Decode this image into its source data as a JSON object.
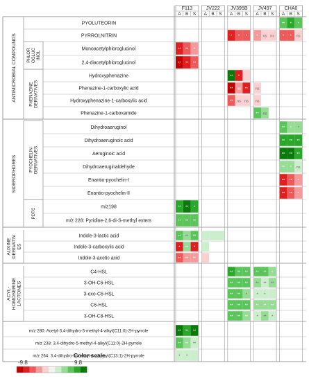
{
  "chart_data": {
    "type": "heatmap",
    "color_scale": {
      "title": "Color scale",
      "min": -9.8,
      "max": 9.8,
      "min_label": "-9.8",
      "max_label": "9.8",
      "colors": [
        "#c00000",
        "#e02020",
        "#ee5a5a",
        "#f59a9a",
        "#fbd0d0",
        "#f2f2f2",
        "#cdeecd",
        "#96db96",
        "#5bc55b",
        "#2ba82b",
        "#0b7a0b"
      ]
    },
    "strains": [
      {
        "name": "F113",
        "cols": [
          "A",
          "B",
          "S"
        ]
      },
      {
        "name": "JV222",
        "cols": [
          "A",
          "B",
          "S"
        ]
      },
      {
        "name": "JV395B",
        "cols": [
          "A",
          "B",
          "S"
        ]
      },
      {
        "name": "JV497",
        "cols": [
          "A",
          "B",
          "S"
        ]
      },
      {
        "name": "CHA0",
        "cols": [
          "A",
          "B",
          "S"
        ]
      }
    ],
    "groups": [
      {
        "label": [
          "ANTIMICROBIAL COMPOUNDS"
        ],
        "start": 0,
        "end": 7
      },
      {
        "label": [
          "SIDEROPHORES"
        ],
        "start": 8,
        "end": 15
      },
      {
        "label": [
          "AUXINE",
          "DERIVATIV",
          "ES"
        ],
        "start": 16,
        "end": 18
      },
      {
        "label": [
          "ACYL-",
          "HOMOSERINE",
          "LACTONES"
        ],
        "start": 19,
        "end": 23
      }
    ],
    "subgroups": [
      {
        "label": [
          "PHLOR",
          "OGLUC",
          "INOL"
        ],
        "start": 2,
        "end": 3
      },
      {
        "label": [
          "PHENAZINE",
          "DERIVATIVES"
        ],
        "start": 4,
        "end": 7
      },
      {
        "label": [
          "PYOCHELIN",
          "DERIVATIVES"
        ],
        "start": 8,
        "end": 13
      },
      {
        "label": [
          "PDTC"
        ],
        "start": 14,
        "end": 15
      }
    ],
    "rows": [
      {
        "label": "PYOLUTEORIN",
        "values": [
          null,
          null,
          null,
          null,
          null,
          null,
          null,
          null,
          null,
          null,
          null,
          null,
          6.5,
          7.0,
          5.0
        ],
        "sig": [
          "",
          "",
          "",
          "",
          "",
          "",
          "",
          "",
          "",
          "",
          "",
          "",
          "**",
          "*",
          "*"
        ]
      },
      {
        "label": "PYRROLNITRIN",
        "values": [
          null,
          null,
          null,
          null,
          null,
          null,
          -7.5,
          -6.0,
          -6.0,
          -4.5,
          -2.5,
          -2.5,
          -5.0,
          -5.5,
          -2.5
        ],
        "sig": [
          "",
          "",
          "",
          "",
          "",
          "",
          "*",
          "*",
          "*",
          "*",
          "ns",
          "ns",
          "*",
          "*",
          "ns"
        ]
      },
      {
        "label": "Monoacetylphloroglucinol",
        "values": [
          -7.0,
          -6.0,
          -4.0,
          null,
          null,
          null,
          null,
          null,
          null,
          null,
          null,
          null,
          null,
          null,
          null
        ],
        "sig": [
          "**",
          "**",
          "*",
          "",
          "",
          "",
          "",
          "",
          "",
          "",
          "",
          "",
          "",
          "",
          ""
        ]
      },
      {
        "label": "2,4-diacetylphloroglucinol",
        "values": [
          -9.0,
          -8.5,
          -6.5,
          null,
          null,
          null,
          null,
          null,
          null,
          null,
          null,
          null,
          null,
          null,
          null
        ],
        "sig": [
          "**",
          "**",
          "**",
          "",
          "",
          "",
          "",
          "",
          "",
          "",
          "",
          "",
          "",
          "",
          ""
        ]
      },
      {
        "label": "Hydroxyphenazine",
        "values": [
          null,
          null,
          null,
          null,
          null,
          null,
          9.5,
          -8.0,
          -1.5,
          null,
          null,
          null,
          null,
          null,
          null
        ],
        "sig": [
          "",
          "",
          "",
          "",
          "",
          "",
          "**",
          "*",
          "",
          "",
          "",
          "",
          "",
          "",
          ""
        ]
      },
      {
        "label": "Phenazine-1-carboxylic acid",
        "values": [
          null,
          null,
          null,
          null,
          null,
          null,
          -9.0,
          -4.0,
          -8.5,
          -2.0,
          null,
          null,
          null,
          null,
          null
        ],
        "sig": [
          "",
          "",
          "",
          "",
          "",
          "",
          "**",
          "ns",
          "**",
          "ns",
          "",
          "",
          "",
          "",
          ""
        ]
      },
      {
        "label": "Hydroxyphenazine-1-carboxylic acid",
        "values": [
          null,
          null,
          null,
          null,
          null,
          null,
          -5.0,
          -2.5,
          -2.0,
          -2.5,
          null,
          null,
          null,
          null,
          null
        ],
        "sig": [
          "",
          "",
          "",
          "",
          "",
          "",
          "**",
          "ns",
          "ns",
          "ns",
          "",
          "",
          "",
          "",
          ""
        ]
      },
      {
        "label": "Phenazine-1-carboxamide",
        "values": [
          null,
          null,
          null,
          null,
          null,
          null,
          null,
          null,
          null,
          6.0,
          3.0,
          null,
          null,
          null,
          null
        ],
        "sig": [
          "",
          "",
          "",
          "",
          "",
          "",
          "",
          "",
          "",
          "**",
          "ns",
          "",
          "",
          "",
          ""
        ]
      },
      {
        "label": "Dihydroaeruginol",
        "values": [
          null,
          null,
          null,
          null,
          null,
          null,
          null,
          null,
          null,
          null,
          null,
          null,
          5.0,
          4.0,
          3.5
        ],
        "sig": [
          "",
          "",
          "",
          "",
          "",
          "",
          "",
          "",
          "",
          "",
          "",
          "",
          "**",
          "*",
          "*"
        ]
      },
      {
        "label": "Dihydroaeruginoic acid",
        "values": [
          null,
          null,
          null,
          null,
          null,
          null,
          null,
          null,
          null,
          null,
          null,
          null,
          8.5,
          7.5,
          7.0
        ],
        "sig": [
          "",
          "",
          "",
          "",
          "",
          "",
          "",
          "",
          "",
          "",
          "",
          "",
          "**",
          "**",
          "**"
        ]
      },
      {
        "label": "Aeruginoic acid",
        "values": [
          null,
          null,
          null,
          null,
          null,
          null,
          null,
          null,
          null,
          null,
          null,
          null,
          9.0,
          9.5,
          7.5
        ],
        "sig": [
          "",
          "",
          "",
          "",
          "",
          "",
          "",
          "",
          "",
          "",
          "",
          "",
          "**",
          "**",
          "**"
        ]
      },
      {
        "label": "Dihydroaeruginaldehyde",
        "values": [
          null,
          null,
          null,
          null,
          null,
          null,
          null,
          null,
          null,
          null,
          null,
          null,
          4.0,
          4.0,
          2.5
        ],
        "sig": [
          "",
          "",
          "",
          "",
          "",
          "",
          "",
          "",
          "",
          "",
          "",
          "",
          "**",
          "*",
          "ns"
        ]
      },
      {
        "label": "Enantio-pyochelin-I",
        "values": [
          null,
          null,
          null,
          null,
          null,
          null,
          null,
          null,
          null,
          null,
          null,
          null,
          -7.5,
          -6.5,
          -4.0
        ],
        "sig": [
          "",
          "",
          "",
          "",
          "",
          "",
          "",
          "",
          "",
          "",
          "",
          "",
          "**",
          "**",
          "*"
        ]
      },
      {
        "label": "Enantio-pyochelin-II",
        "values": [
          null,
          null,
          null,
          null,
          null,
          null,
          null,
          null,
          null,
          null,
          null,
          null,
          -8.0,
          -6.5,
          -4.5
        ],
        "sig": [
          "",
          "",
          "",
          "",
          "",
          "",
          "",
          "",
          "",
          "",
          "",
          "",
          "**",
          "**",
          "*"
        ]
      },
      {
        "label": "m/z198",
        "values": [
          8.0,
          9.0,
          8.5,
          null,
          null,
          null,
          null,
          null,
          null,
          null,
          null,
          null,
          null,
          null,
          null
        ],
        "sig": [
          "**",
          "**",
          "*",
          "",
          "",
          "",
          "",
          "",
          "",
          "",
          "",
          "",
          "",
          "",
          ""
        ]
      },
      {
        "label": "m/z 228: Pyridine-2,6-di-S-methyl esters",
        "values": [
          5.0,
          5.5,
          5.0,
          null,
          null,
          null,
          null,
          null,
          null,
          null,
          null,
          null,
          null,
          null,
          null
        ],
        "sig": [
          "**",
          "**",
          "**",
          "",
          "",
          "",
          "",
          "",
          "",
          "",
          "",
          "",
          "",
          "",
          ""
        ]
      },
      {
        "label": "Indole-3-lactic acid",
        "values": [
          5.0,
          3.5,
          5.5,
          2.0,
          1.0,
          1.0,
          null,
          null,
          null,
          null,
          null,
          null,
          null,
          null,
          null
        ],
        "sig": [
          "**",
          "**",
          "**",
          "",
          "",
          "",
          "",
          "",
          "",
          "",
          "",
          "",
          "",
          "",
          ""
        ]
      },
      {
        "label": "Indole-3-carboxylic acid",
        "values": [
          -8.5,
          4.0,
          -7.0,
          2.0,
          null,
          null,
          null,
          null,
          null,
          null,
          null,
          null,
          null,
          null,
          null
        ],
        "sig": [
          "*",
          "**",
          "*",
          "",
          "",
          "",
          "",
          "",
          "",
          "",
          "",
          "",
          "",
          "",
          ""
        ]
      },
      {
        "label": "Indole-3-acetic acid",
        "values": [
          -5.0,
          -4.5,
          -4.0,
          -2.0,
          null,
          null,
          null,
          null,
          null,
          null,
          null,
          null,
          null,
          null,
          null
        ],
        "sig": [
          "**",
          "**",
          "**",
          "",
          "",
          "",
          "",
          "",
          "",
          "",
          "",
          "",
          "",
          "",
          ""
        ]
      },
      {
        "label": "C4-HSL",
        "values": [
          null,
          null,
          null,
          null,
          null,
          null,
          7.0,
          6.0,
          5.5,
          6.5,
          5.0,
          4.0,
          null,
          null,
          null
        ],
        "sig": [
          "",
          "",
          "",
          "",
          "",
          "",
          "**",
          "**",
          "**",
          "**",
          "**",
          "*",
          "",
          "",
          ""
        ]
      },
      {
        "label": "3-OH-C6-HSL",
        "values": [
          null,
          null,
          null,
          null,
          null,
          null,
          6.0,
          6.5,
          6.0,
          3.0,
          2.5,
          3.0,
          null,
          null,
          null
        ],
        "sig": [
          "",
          "",
          "",
          "",
          "",
          "",
          "**",
          "**",
          "**",
          "**",
          "**",
          "**",
          "",
          "",
          ""
        ]
      },
      {
        "label": "3-oxo-C6-HSL",
        "values": [
          null,
          null,
          null,
          null,
          null,
          null,
          5.5,
          5.0,
          3.5,
          2.5,
          2.0,
          1.0,
          null,
          null,
          null
        ],
        "sig": [
          "",
          "",
          "",
          "",
          "",
          "",
          "**",
          "**",
          "*",
          "*",
          "*",
          "",
          "",
          "",
          ""
        ]
      },
      {
        "label": "C6-HSL",
        "values": [
          null,
          null,
          null,
          null,
          null,
          null,
          6.0,
          6.5,
          5.5,
          4.0,
          4.5,
          4.0,
          null,
          null,
          null
        ],
        "sig": [
          "",
          "",
          "",
          "",
          "",
          "",
          "**",
          "**",
          "**",
          "**",
          "**",
          "**",
          "",
          "",
          ""
        ]
      },
      {
        "label": "3-OH-C8-HSL",
        "values": [
          null,
          null,
          null,
          null,
          null,
          null,
          6.0,
          5.5,
          4.5,
          2.5,
          3.5,
          2.0,
          null,
          null,
          null
        ],
        "sig": [
          "",
          "",
          "",
          "",
          "",
          "",
          "**",
          "**",
          "**",
          "*",
          "**",
          "*",
          "",
          "",
          ""
        ]
      },
      {
        "label": "m/z 280: Acetyl-3,4-dihydro-5-methyl-4-alkyl(C11:0)-2H-pyrrole",
        "values": [
          9.0,
          8.5,
          9.5,
          null,
          null,
          null,
          null,
          null,
          null,
          null,
          null,
          null,
          null,
          null,
          null
        ],
        "sig": [
          "**",
          "**",
          "**",
          "",
          "",
          "",
          "",
          "",
          "",
          "",
          "",
          "",
          "",
          "",
          ""
        ]
      },
      {
        "label": "m/z 238: 3,4-dihydro-5-methyl-4-alkyl(C11:0)-2H-pyrrole",
        "values": [
          5.0,
          4.5,
          2.5,
          null,
          null,
          null,
          null,
          null,
          null,
          null,
          null,
          null,
          null,
          null,
          null
        ],
        "sig": [
          "**",
          "**",
          "**",
          "",
          "",
          "",
          "",
          "",
          "",
          "",
          "",
          "",
          "",
          "",
          ""
        ]
      },
      {
        "label": "m/z 264: 3,4-dihydro-5-methyl-4-alkenyl(C13:1)-2H-pyrrole",
        "values": [
          2.5,
          1.5,
          1.0,
          null,
          null,
          null,
          null,
          null,
          null,
          null,
          null,
          null,
          null,
          null,
          null
        ],
        "sig": [
          "*",
          "*",
          "",
          "",
          "",
          "",
          "",
          "",
          "",
          "",
          "",
          "",
          "",
          "",
          ""
        ]
      }
    ]
  }
}
